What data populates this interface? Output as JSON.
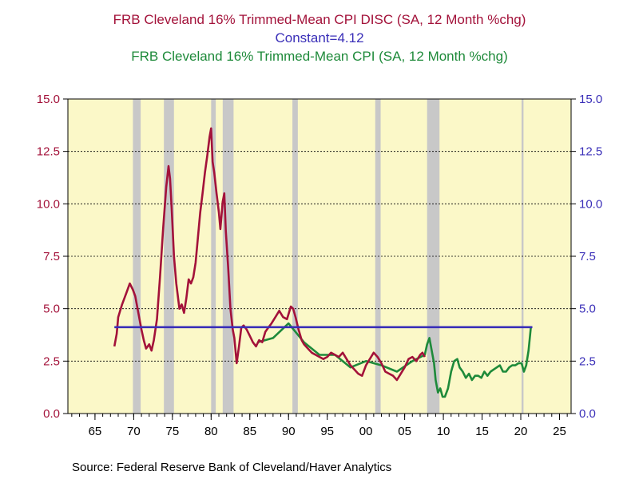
{
  "titles": [
    {
      "text": "FRB Cleveland 16% Trimmed-Mean CPI DISC (SA, 12 Month %chg)",
      "color": "#a3123a"
    },
    {
      "text": "Constant=4.12",
      "color": "#3a2fb8"
    },
    {
      "text": "FRB Cleveland 16% Trimmed-Mean CPI (SA, 12 Month %chg)",
      "color": "#1e8a3a"
    }
  ],
  "source": "Source:  Federal Reserve Bank of Cleveland/Haver Analytics",
  "colors": {
    "plot_bg": "#fbf8c8",
    "recession": "#c8c8c8",
    "disc": "#a3123a",
    "constant": "#3a2fb8",
    "current": "#1e8a3a",
    "left_axis": "#a3123a",
    "right_axis": "#3a2fb8"
  },
  "chart_data": {
    "type": "line",
    "xlim": [
      1961.5,
      2026.5
    ],
    "ylim": [
      0,
      15
    ],
    "x_ticks": [
      {
        "value": 1965,
        "label": "65"
      },
      {
        "value": 1970,
        "label": "70"
      },
      {
        "value": 1975,
        "label": "75"
      },
      {
        "value": 1980,
        "label": "80"
      },
      {
        "value": 1985,
        "label": "85"
      },
      {
        "value": 1990,
        "label": "90"
      },
      {
        "value": 1995,
        "label": "95"
      },
      {
        "value": 2000,
        "label": "00"
      },
      {
        "value": 2005,
        "label": "05"
      },
      {
        "value": 2010,
        "label": "10"
      },
      {
        "value": 2015,
        "label": "15"
      },
      {
        "value": 2020,
        "label": "20"
      },
      {
        "value": 2025,
        "label": "25"
      }
    ],
    "y_ticks_left": [
      "0.0",
      "2.5",
      "5.0",
      "7.5",
      "10.0",
      "12.5",
      "15.0"
    ],
    "y_ticks_right": [
      "0.0",
      "2.5",
      "5.0",
      "7.5",
      "10.0",
      "12.5",
      "15.0"
    ],
    "y_tick_values": [
      0,
      2.5,
      5,
      7.5,
      10,
      12.5,
      15
    ],
    "gridlines": "horizontal dashed",
    "recessions": [
      [
        1969.9,
        1970.9
      ],
      [
        1973.9,
        1975.2
      ],
      [
        1980.0,
        1980.6
      ],
      [
        1981.5,
        1982.9
      ],
      [
        1990.5,
        1991.2
      ],
      [
        2001.2,
        2001.9
      ],
      [
        2007.9,
        2009.5
      ],
      [
        2020.1,
        2020.35
      ]
    ],
    "series": [
      {
        "key": "disc",
        "x": [
          1967.5,
          1967.8,
          1968.0,
          1968.5,
          1969.0,
          1969.5,
          1969.9,
          1970.2,
          1970.6,
          1971.0,
          1971.3,
          1971.6,
          1972.0,
          1972.3,
          1972.6,
          1973.0,
          1973.4,
          1973.8,
          1974.2,
          1974.5,
          1974.7,
          1974.9,
          1975.2,
          1975.5,
          1975.9,
          1976.2,
          1976.5,
          1976.8,
          1977.1,
          1977.4,
          1977.7,
          1978.0,
          1978.3,
          1978.6,
          1978.9,
          1979.2,
          1979.5,
          1979.8,
          1980.0,
          1980.2,
          1980.4,
          1980.7,
          1981.0,
          1981.2,
          1981.5,
          1981.7,
          1981.9,
          1982.2,
          1982.5,
          1982.8,
          1983.0,
          1983.3,
          1983.6,
          1983.9,
          1984.2,
          1984.6,
          1985.0,
          1985.4,
          1985.8,
          1986.2,
          1986.6,
          1987.0,
          1987.4,
          1987.8,
          1988.3,
          1988.8,
          1989.3,
          1989.8,
          1990.3,
          1990.6,
          1990.9,
          1991.3,
          1991.7,
          1992.0,
          1992.5,
          1993.0,
          1993.5,
          1994.0,
          1994.5,
          1995.0,
          1995.5,
          1996.0,
          1996.5,
          1997.0,
          1997.5,
          1998.0,
          1998.5,
          1999.0,
          1999.5,
          2000.0,
          2000.5,
          2001.0,
          2001.5,
          2002.0,
          2002.5,
          2003.0,
          2003.5,
          2004.0,
          2004.5,
          2005.0,
          2005.5,
          2006.0,
          2006.5,
          2007.0,
          2007.3,
          2007.6
        ],
        "y": [
          3.2,
          3.8,
          4.6,
          5.2,
          5.7,
          6.2,
          5.9,
          5.6,
          4.8,
          4.0,
          3.5,
          3.1,
          3.3,
          3.0,
          3.5,
          4.5,
          6.5,
          8.8,
          10.8,
          11.8,
          11.2,
          9.8,
          7.5,
          6.2,
          5.0,
          5.2,
          4.8,
          5.5,
          6.4,
          6.2,
          6.5,
          7.2,
          8.4,
          9.6,
          10.5,
          11.5,
          12.3,
          13.2,
          13.6,
          12.0,
          11.5,
          10.5,
          9.6,
          8.8,
          10.1,
          10.5,
          8.7,
          7.0,
          5.0,
          4.0,
          3.6,
          2.4,
          3.2,
          4.1,
          4.2,
          4.0,
          3.7,
          3.4,
          3.2,
          3.5,
          3.4,
          3.9,
          4.1,
          4.3,
          4.6,
          4.9,
          4.6,
          4.5,
          5.1,
          5.0,
          4.6,
          4.0,
          3.5,
          3.3,
          3.1,
          2.9,
          2.8,
          2.7,
          2.6,
          2.7,
          2.9,
          2.8,
          2.7,
          2.9,
          2.6,
          2.3,
          2.1,
          1.9,
          1.8,
          2.3,
          2.6,
          2.9,
          2.7,
          2.4,
          2.0,
          1.9,
          1.8,
          1.6,
          1.9,
          2.2,
          2.6,
          2.7,
          2.5,
          2.8,
          2.9,
          2.7
        ]
      },
      {
        "key": "constant",
        "x": [
          1967.5,
          2021.5
        ],
        "y": [
          4.12,
          4.12
        ]
      },
      {
        "key": "current",
        "x": [
          1986.0,
          1988.0,
          1990.0,
          1992.0,
          1994.0,
          1996.0,
          1998.0,
          2000.0,
          2002.0,
          2004.0,
          2006.0,
          2007.6,
          2007.9,
          2008.2,
          2008.5,
          2008.8,
          2009.0,
          2009.3,
          2009.6,
          2009.9,
          2010.2,
          2010.6,
          2011.0,
          2011.4,
          2011.8,
          2012.1,
          2012.5,
          2012.9,
          2013.3,
          2013.7,
          2014.1,
          2014.5,
          2014.9,
          2015.3,
          2015.7,
          2016.1,
          2016.5,
          2016.9,
          2017.3,
          2017.7,
          2018.1,
          2018.5,
          2018.9,
          2019.3,
          2019.7,
          2020.1,
          2020.4,
          2020.7,
          2021.0,
          2021.3
        ],
        "y": [
          3.4,
          3.6,
          4.3,
          3.4,
          2.8,
          2.8,
          2.2,
          2.5,
          2.3,
          2.0,
          2.5,
          2.8,
          3.3,
          3.6,
          3.0,
          2.4,
          1.6,
          1.0,
          1.2,
          0.8,
          0.8,
          1.2,
          2.0,
          2.5,
          2.6,
          2.2,
          2.0,
          1.7,
          1.9,
          1.6,
          1.8,
          1.8,
          1.7,
          2.0,
          1.8,
          2.0,
          2.1,
          2.2,
          2.3,
          2.0,
          2.0,
          2.2,
          2.3,
          2.3,
          2.4,
          2.4,
          2.0,
          2.3,
          3.0,
          4.1
        ]
      }
    ]
  }
}
